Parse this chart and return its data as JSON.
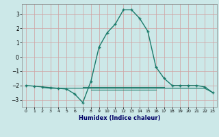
{
  "xlabel": "Humidex (Indice chaleur)",
  "background_color": "#cce8e8",
  "grid_color": "#b0c8c8",
  "line_color": "#1a7a6a",
  "x_main": [
    0,
    1,
    2,
    3,
    4,
    5,
    6,
    7,
    8,
    9,
    10,
    11,
    12,
    13,
    14,
    15,
    16,
    17,
    18,
    19,
    20,
    21,
    22,
    23
  ],
  "y_main": [
    -2.0,
    -2.05,
    -2.1,
    -2.15,
    -2.2,
    -2.25,
    -2.6,
    -3.2,
    -1.7,
    0.7,
    1.7,
    2.3,
    3.3,
    3.3,
    2.7,
    1.8,
    -0.7,
    -1.5,
    -2.0,
    -2.0,
    -2.0,
    -2.0,
    -2.1,
    -2.5
  ],
  "x_line2": [
    2,
    3,
    4,
    5,
    6,
    7,
    8,
    9,
    10,
    11,
    12,
    13,
    14,
    15,
    16,
    17,
    18,
    19,
    20,
    21,
    22,
    23
  ],
  "y_line2": [
    -2.15,
    -2.2,
    -2.2,
    -2.2,
    -2.2,
    -2.2,
    -2.2,
    -2.2,
    -2.2,
    -2.2,
    -2.2,
    -2.2,
    -2.2,
    -2.2,
    -2.2,
    -2.2,
    -2.2,
    -2.2,
    -2.2,
    -2.2,
    -2.2,
    -2.5
  ],
  "x_line3": [
    7,
    8,
    9,
    10,
    11,
    12,
    13,
    14,
    15,
    16,
    17
  ],
  "y_line3": [
    -2.1,
    -2.1,
    -2.1,
    -2.1,
    -2.1,
    -2.1,
    -2.1,
    -2.1,
    -2.1,
    -2.1,
    -2.1
  ],
  "x_line4": [
    8,
    9,
    10,
    11,
    12,
    13,
    14,
    15,
    16
  ],
  "y_line4": [
    -2.3,
    -2.3,
    -2.3,
    -2.3,
    -2.3,
    -2.3,
    -2.3,
    -2.3,
    -2.3
  ],
  "xlim": [
    0,
    23
  ],
  "ylim": [
    -3.5,
    3.7
  ],
  "yticks": [
    -3,
    -2,
    -1,
    0,
    1,
    2,
    3
  ],
  "xticks": [
    0,
    1,
    2,
    3,
    4,
    5,
    6,
    7,
    8,
    9,
    10,
    11,
    12,
    13,
    14,
    15,
    16,
    17,
    18,
    19,
    20,
    21,
    22,
    23
  ]
}
